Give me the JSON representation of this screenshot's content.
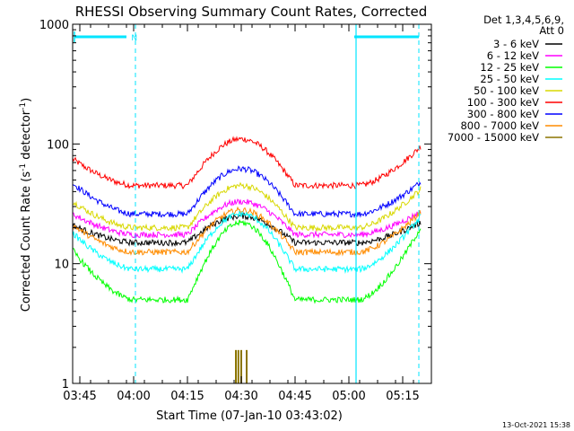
{
  "chart_data": {
    "type": "line",
    "title": "RHESSI Observing Summary Count Rates, Corrected",
    "xlabel": "Start Time (07-Jan-10 03:43:02)",
    "ylabel_main": "Corrected Count Rate (s",
    "ylabel_sup1": "-1",
    "ylabel_mid": " detector",
    "ylabel_sup2": "-1",
    "ylabel_end": ")",
    "yscale": "log",
    "ylim": [
      1,
      1000
    ],
    "xlim_minutes": [
      0,
      100
    ],
    "x_tick_labels": [
      "03:45",
      "04:00",
      "04:15",
      "04:30",
      "04:45",
      "05:00",
      "05:15"
    ],
    "x_tick_minutes": [
      2,
      17,
      32,
      47,
      62,
      77,
      92
    ],
    "y_tick_labels": [
      "1",
      "10",
      "100",
      "1000"
    ],
    "y_tick_values": [
      1,
      10,
      100,
      1000
    ],
    "legend": {
      "header1": "Det 1,3,4,5,6,9,",
      "header2": "Att 0",
      "entries": [
        {
          "label": "3 - 6 keV",
          "color": "#000000"
        },
        {
          "label": "6 - 12 keV",
          "color": "#ff00ff"
        },
        {
          "label": "12 - 25 keV",
          "color": "#00ff00"
        },
        {
          "label": "25 - 50 keV",
          "color": "#00ffff"
        },
        {
          "label": "50 - 100 keV",
          "color": "#d8d800"
        },
        {
          "label": "100 - 300 keV",
          "color": "#ff0000"
        },
        {
          "label": "300 - 800 keV",
          "color": "#0000ff"
        },
        {
          "label": "800 - 7000 keV",
          "color": "#ff8c00"
        },
        {
          "label": "7000 - 15000 keV",
          "color": "#8b7500"
        }
      ]
    },
    "series": [
      {
        "color": "#ff0000",
        "start": 75,
        "low": 45,
        "peak": 110,
        "end": 95
      },
      {
        "color": "#0000ff",
        "start": 47,
        "low": 26,
        "peak": 62,
        "end": 48
      },
      {
        "color": "#d8d800",
        "start": 33,
        "low": 20,
        "peak": 45,
        "end": 42
      },
      {
        "color": "#ff00ff",
        "start": 26,
        "low": 17.5,
        "peak": 33,
        "end": 27
      },
      {
        "color": "#000000",
        "start": 21,
        "low": 15,
        "peak": 25,
        "end": 22
      },
      {
        "color": "#ff8c00",
        "start": 21,
        "low": 12.5,
        "peak": 28,
        "end": 27
      },
      {
        "color": "#00ffff",
        "start": 18,
        "low": 9,
        "peak": 26,
        "end": 25
      },
      {
        "color": "#00ff00",
        "start": 13,
        "low": 5,
        "peak": 22,
        "end": 20
      }
    ],
    "saa_flag": "N",
    "spike_series_color": "#8b7500",
    "spike_minutes": [
      45.5,
      46.2,
      47.0,
      48.5
    ]
  },
  "footer_date": "13-Oct-2021 15:38"
}
